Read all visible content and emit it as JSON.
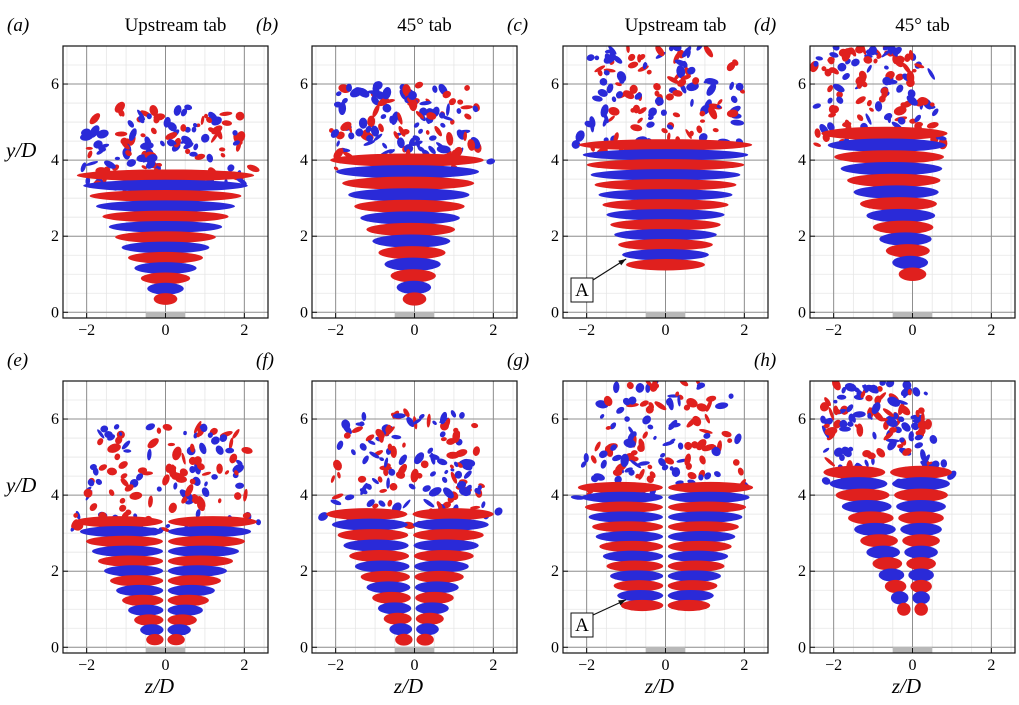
{
  "panels": [
    {
      "label": "(a)",
      "title": "Upstream tab",
      "style": "a"
    },
    {
      "label": "(b)",
      "title": "45° tab",
      "style": "b"
    },
    {
      "label": "(c)",
      "title": "Upstream tab",
      "style": "c",
      "annotation": "A"
    },
    {
      "label": "(d)",
      "title": "45° tab",
      "style": "d"
    },
    {
      "label": "(e)",
      "title": "",
      "style": "e"
    },
    {
      "label": "(f)",
      "title": "",
      "style": "f"
    },
    {
      "label": "(g)",
      "title": "",
      "style": "g",
      "annotation": "A"
    },
    {
      "label": "(h)",
      "title": "",
      "style": "h"
    }
  ],
  "axes": {
    "xlabel": "z/D",
    "ylabel": "y/D",
    "xticks": [
      -2,
      0,
      2
    ],
    "yticks": [
      0,
      2,
      4,
      6
    ],
    "xlim": [
      -2.6,
      2.6
    ],
    "ylim": [
      -0.15,
      7.0
    ]
  },
  "colors": {
    "positive": "#e0201e",
    "negative": "#2a2ad8",
    "grid": "#8f8f8f",
    "nozzle": "#b8b8b8"
  }
}
